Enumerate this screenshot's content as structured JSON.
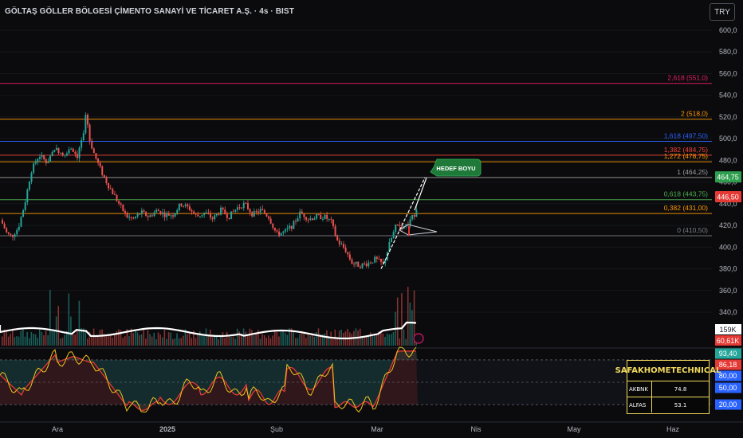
{
  "title": "GÖLTAŞ GÖLLER BÖLGESİ ÇİMENTO SANAYİ VE TİCARET A.Ş. · 4s · BIST",
  "currency_button": "TRY",
  "colors": {
    "up": "#26a69a",
    "down": "#ef5350",
    "background": "#0b0b0d"
  },
  "chart_data": {
    "type": "candlestick",
    "ylim": [
      360,
      610
    ],
    "y_ticks": [
      "600,0",
      "580,0",
      "560,0",
      "540,0",
      "520,0",
      "500,0",
      "480,0",
      "460,0",
      "440,0",
      "420,0",
      "400,0",
      "380,0",
      "360,0",
      "340,0"
    ],
    "x_ticks": [
      "Ara",
      "2025",
      "Şub",
      "Mar",
      "Nis",
      "May",
      "Haz"
    ],
    "price_path": [
      {
        "t": 0,
        "p": 425
      },
      {
        "t": 8,
        "p": 412
      },
      {
        "t": 14,
        "p": 410
      },
      {
        "t": 22,
        "p": 418
      },
      {
        "t": 30,
        "p": 440
      },
      {
        "t": 38,
        "p": 470
      },
      {
        "t": 48,
        "p": 485
      },
      {
        "t": 58,
        "p": 478
      },
      {
        "t": 68,
        "p": 492
      },
      {
        "t": 78,
        "p": 485
      },
      {
        "t": 88,
        "p": 492
      },
      {
        "t": 96,
        "p": 484
      },
      {
        "t": 104,
        "p": 505
      },
      {
        "t": 107,
        "p": 526
      },
      {
        "t": 111,
        "p": 500
      },
      {
        "t": 118,
        "p": 484
      },
      {
        "t": 126,
        "p": 470
      },
      {
        "t": 134,
        "p": 458
      },
      {
        "t": 142,
        "p": 448
      },
      {
        "t": 150,
        "p": 438
      },
      {
        "t": 158,
        "p": 428
      },
      {
        "t": 166,
        "p": 426
      },
      {
        "t": 176,
        "p": 432
      },
      {
        "t": 186,
        "p": 428
      },
      {
        "t": 196,
        "p": 434
      },
      {
        "t": 206,
        "p": 430
      },
      {
        "t": 216,
        "p": 430
      },
      {
        "t": 226,
        "p": 440
      },
      {
        "t": 236,
        "p": 436
      },
      {
        "t": 246,
        "p": 428
      },
      {
        "t": 256,
        "p": 432
      },
      {
        "t": 266,
        "p": 426
      },
      {
        "t": 276,
        "p": 434
      },
      {
        "t": 286,
        "p": 428
      },
      {
        "t": 296,
        "p": 436
      },
      {
        "t": 306,
        "p": 440
      },
      {
        "t": 316,
        "p": 430
      },
      {
        "t": 326,
        "p": 434
      },
      {
        "t": 336,
        "p": 428
      },
      {
        "t": 346,
        "p": 412
      },
      {
        "t": 356,
        "p": 414
      },
      {
        "t": 366,
        "p": 420
      },
      {
        "t": 376,
        "p": 432
      },
      {
        "t": 386,
        "p": 426
      },
      {
        "t": 396,
        "p": 428
      },
      {
        "t": 406,
        "p": 428
      },
      {
        "t": 414,
        "p": 424
      },
      {
        "t": 422,
        "p": 406
      },
      {
        "t": 432,
        "p": 398
      },
      {
        "t": 440,
        "p": 386
      },
      {
        "t": 450,
        "p": 383
      },
      {
        "t": 460,
        "p": 385
      },
      {
        "t": 470,
        "p": 389
      },
      {
        "t": 480,
        "p": 384
      },
      {
        "t": 488,
        "p": 404
      },
      {
        "t": 496,
        "p": 420
      },
      {
        "t": 504,
        "p": 419
      },
      {
        "t": 512,
        "p": 422
      },
      {
        "t": 520,
        "p": 432
      },
      {
        "t": 525,
        "p": 446
      }
    ],
    "fib_levels": [
      {
        "label": "2,618 (551,0)",
        "value": 551.0,
        "color": "#e91e63"
      },
      {
        "label": "2 (518,0)",
        "value": 518.0,
        "color": "#ff9800"
      },
      {
        "label": "1,618 (497,50)",
        "value": 497.5,
        "color": "#2962ff"
      },
      {
        "label": "1,382 (484,75)",
        "value": 484.75,
        "color": "#f44336"
      },
      {
        "label": "1,272 (478,75)",
        "value": 478.75,
        "color": "#ff9800"
      },
      {
        "label": "1 (464,25)",
        "value": 464.25,
        "color": "#9e9e9e"
      },
      {
        "label": "0,618 (443,75)",
        "value": 443.75,
        "color": "#4caf50"
      },
      {
        "label": "0,382 (431,00)",
        "value": 431.0,
        "color": "#ff9800"
      },
      {
        "label": "0 (410,50)",
        "value": 410.5,
        "color": "#787b86"
      }
    ],
    "price_tags": [
      {
        "label": "464,75",
        "value": 464.75,
        "color": "#2e9e4f"
      },
      {
        "label": "446,50",
        "value": 446.5,
        "color": "#e53935"
      }
    ],
    "annotation": "HEDEF BOYU",
    "volume_tags": [
      {
        "label": "159K",
        "style": "light"
      },
      {
        "label": "60,61K",
        "style": "red"
      }
    ],
    "oscillator_tags": [
      {
        "label": "93,40",
        "color": "#26a69a"
      },
      {
        "label": "86,18",
        "color": "#e53935"
      },
      {
        "label": "80,00",
        "color": "#2962ff"
      },
      {
        "label": "50,00",
        "color": "#2962ff"
      },
      {
        "label": "20,00",
        "color": "#2962ff"
      }
    ]
  },
  "info_table": {
    "header": "SAFAKHOMETECHNICAL",
    "rows": [
      {
        "symbol": "AKBNK",
        "value": "74.8"
      },
      {
        "symbol": "ALFAS",
        "value": "53.1"
      }
    ]
  }
}
